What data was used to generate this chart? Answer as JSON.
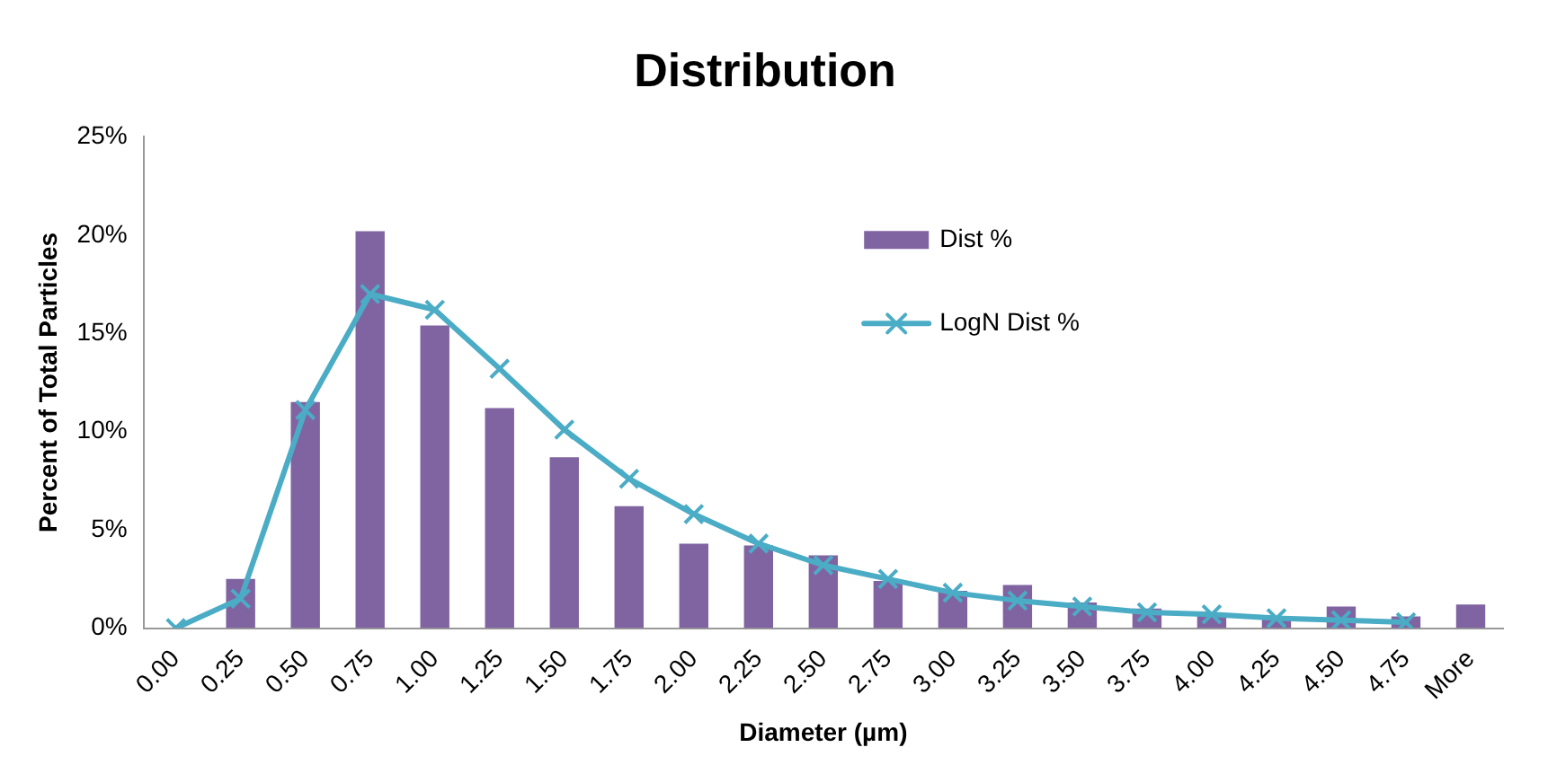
{
  "chart_data": {
    "type": "bar",
    "title": "Distribution",
    "xlabel": "Diameter (µm)",
    "ylabel": "Percent of Total Particles",
    "categories": [
      "0.00",
      "0.25",
      "0.50",
      "0.75",
      "1.00",
      "1.25",
      "1.50",
      "1.75",
      "2.00",
      "2.25",
      "2.50",
      "2.75",
      "3.00",
      "3.25",
      "3.50",
      "3.75",
      "4.00",
      "4.25",
      "4.50",
      "4.75",
      "More"
    ],
    "series": [
      {
        "name": "Dist %",
        "color": "#8064a2",
        "values": [
          0,
          2.5,
          11.5,
          20.2,
          15.4,
          11.2,
          8.7,
          6.2,
          4.3,
          4.2,
          3.7,
          2.4,
          1.9,
          2.2,
          1.3,
          1.0,
          0.7,
          0.5,
          1.1,
          0.6,
          1.2
        ]
      },
      {
        "name": "LogN Dist %",
        "type": "line",
        "color": "#4bacc6",
        "marker": "cross",
        "values": [
          0,
          1.5,
          11.1,
          17.0,
          16.2,
          13.2,
          10.1,
          7.6,
          5.8,
          4.3,
          3.2,
          2.5,
          1.8,
          1.4,
          1.1,
          0.8,
          0.7,
          0.5,
          0.4,
          0.3,
          null
        ]
      }
    ],
    "ylim": [
      0,
      25
    ],
    "yticks": [
      {
        "value": 0,
        "label": "0%"
      },
      {
        "value": 5,
        "label": "5%"
      },
      {
        "value": 10,
        "label": "10%"
      },
      {
        "value": 15,
        "label": "15%"
      },
      {
        "value": 20,
        "label": "20%"
      },
      {
        "value": 25,
        "label": "25%"
      }
    ],
    "grid": false,
    "legend": "top right"
  }
}
